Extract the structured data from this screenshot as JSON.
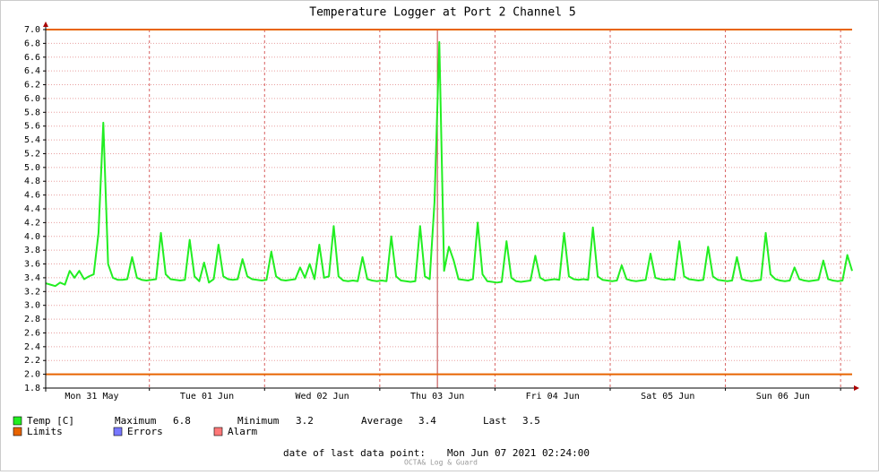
{
  "chart_data": {
    "type": "line",
    "title": "Temperature Logger at Port 2 Channel 5",
    "x": [
      0,
      1,
      2,
      3,
      4,
      5,
      6,
      7,
      8,
      9,
      10,
      11,
      12,
      13,
      14,
      15,
      16,
      17,
      18,
      19,
      20,
      21,
      22,
      23,
      24,
      25,
      26,
      27,
      28,
      29,
      30,
      31,
      32,
      33,
      34,
      35,
      36,
      37,
      38,
      39,
      40,
      41,
      42,
      43,
      44,
      45,
      46,
      47,
      48,
      49,
      50,
      51,
      52,
      53,
      54,
      55,
      56,
      57,
      58,
      59,
      60,
      61,
      62,
      63,
      64,
      65,
      66,
      67,
      68,
      69,
      70,
      71,
      72,
      73,
      74,
      75,
      76,
      77,
      78,
      79,
      80,
      81,
      82,
      83,
      84,
      85,
      86,
      87,
      88,
      89,
      90,
      91,
      92,
      93,
      94,
      95,
      96,
      97,
      98,
      99,
      100,
      101,
      102,
      103,
      104,
      105,
      106,
      107,
      108,
      109,
      110,
      111,
      112,
      113,
      114,
      115,
      116,
      117,
      118,
      119,
      120,
      121,
      122,
      123,
      124,
      125,
      126,
      127,
      128,
      129,
      130,
      131,
      132,
      133,
      134,
      135,
      136,
      137,
      138,
      139,
      140,
      141,
      142,
      143,
      144,
      145,
      146,
      147,
      148,
      149,
      150,
      151,
      152,
      153,
      154,
      155,
      156,
      157,
      158,
      159,
      160,
      161,
      162,
      163,
      164,
      165,
      166,
      167,
      168
    ],
    "series": [
      {
        "name": "Temp [C]",
        "color": "#22ee22",
        "values": [
          3.32,
          3.3,
          3.28,
          3.33,
          3.3,
          3.5,
          3.4,
          3.5,
          3.38,
          3.42,
          3.45,
          4.05,
          5.65,
          3.6,
          3.4,
          3.37,
          3.37,
          3.38,
          3.7,
          3.4,
          3.37,
          3.36,
          3.37,
          3.38,
          4.05,
          3.45,
          3.38,
          3.37,
          3.36,
          3.37,
          3.95,
          3.42,
          3.35,
          3.62,
          3.33,
          3.38,
          3.88,
          3.42,
          3.38,
          3.37,
          3.38,
          3.67,
          3.42,
          3.38,
          3.37,
          3.36,
          3.37,
          3.78,
          3.42,
          3.37,
          3.36,
          3.37,
          3.38,
          3.55,
          3.4,
          3.6,
          3.38,
          3.88,
          3.4,
          3.42,
          4.15,
          3.42,
          3.36,
          3.35,
          3.36,
          3.35,
          3.7,
          3.38,
          3.36,
          3.35,
          3.36,
          3.35,
          4.0,
          3.42,
          3.36,
          3.35,
          3.34,
          3.35,
          4.15,
          3.42,
          3.38,
          4.5,
          6.82,
          3.5,
          3.85,
          3.65,
          3.38,
          3.37,
          3.36,
          3.38,
          4.2,
          3.45,
          3.35,
          3.34,
          3.33,
          3.34,
          3.93,
          3.4,
          3.35,
          3.34,
          3.35,
          3.36,
          3.72,
          3.4,
          3.36,
          3.37,
          3.38,
          3.37,
          4.05,
          3.42,
          3.38,
          3.37,
          3.38,
          3.37,
          4.13,
          3.42,
          3.37,
          3.36,
          3.35,
          3.36,
          3.58,
          3.38,
          3.36,
          3.35,
          3.36,
          3.37,
          3.75,
          3.4,
          3.38,
          3.37,
          3.38,
          3.37,
          3.93,
          3.42,
          3.38,
          3.37,
          3.36,
          3.37,
          3.85,
          3.42,
          3.37,
          3.36,
          3.35,
          3.36,
          3.7,
          3.38,
          3.36,
          3.35,
          3.36,
          3.37,
          4.05,
          3.45,
          3.38,
          3.36,
          3.35,
          3.36,
          3.55,
          3.38,
          3.36,
          3.35,
          3.36,
          3.37,
          3.65,
          3.38,
          3.36,
          3.35,
          3.36,
          3.73,
          3.5
        ]
      }
    ],
    "limits": {
      "name": "Limits",
      "color": "#e86400",
      "values": [
        7.0,
        2.0
      ]
    },
    "legend_extra": [
      {
        "name": "Errors",
        "color": "#7878ff"
      },
      {
        "name": "Alarm",
        "color": "#ff7878"
      }
    ],
    "stats": [
      {
        "label": "Maximum",
        "value": 6.8
      },
      {
        "label": "Minimum",
        "value": 3.2
      },
      {
        "label": "Average",
        "value": 3.4
      },
      {
        "label": "Last",
        "value": 3.5
      }
    ],
    "xlim": [
      0,
      168
    ],
    "xticks": [
      {
        "value": 9.6,
        "label": "Mon 31 May"
      },
      {
        "value": 33.6,
        "label": "Tue 01 Jun"
      },
      {
        "value": 57.6,
        "label": "Wed 02 Jun"
      },
      {
        "value": 81.6,
        "label": "Thu 03 Jun"
      },
      {
        "value": 105.6,
        "label": "Fri 04 Jun"
      },
      {
        "value": 129.6,
        "label": "Sat 05 Jun"
      },
      {
        "value": 153.6,
        "label": "Sun 06 Jun"
      }
    ],
    "xgrid": [
      21.6,
      45.6,
      69.6,
      93.6,
      117.6,
      141.6,
      165.6
    ],
    "vrule": 81.6,
    "ylim": [
      1.8,
      7.0
    ],
    "yticks": [
      1.8,
      {
        "value": 2.0,
        "label": "2.0"
      },
      2.2,
      2.4,
      2.6,
      2.8,
      {
        "value": 3.0,
        "label": "3.0"
      },
      3.2,
      3.4,
      3.6,
      3.8,
      {
        "value": 4.0,
        "label": "4.0"
      },
      4.2,
      4.4,
      4.6,
      4.8,
      {
        "value": 5.0,
        "label": "5.0"
      },
      5.2,
      5.4,
      5.6,
      5.8,
      {
        "value": 6.0,
        "label": "6.0"
      },
      6.2,
      6.4,
      6.6,
      6.8,
      {
        "value": 7.0,
        "label": "7.0"
      }
    ],
    "grid": true,
    "footer": {
      "label": "date of last data point:",
      "date": "Mon Jun 07 2021 02:24:00",
      "credit": "OCTA& Log & Guard"
    }
  }
}
